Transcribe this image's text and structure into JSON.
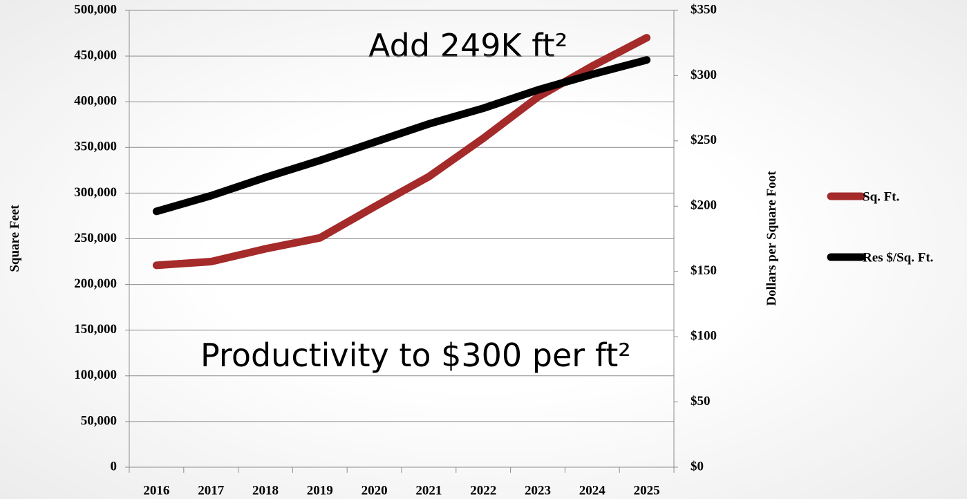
{
  "chart_data": {
    "type": "line",
    "categories": [
      "2016",
      "2017",
      "2018",
      "2019",
      "2020",
      "2021",
      "2022",
      "2023",
      "2024",
      "2025"
    ],
    "series": [
      {
        "name": "Sq. Ft.",
        "color": "#a52a2a",
        "values": [
          221000,
          225000,
          239000,
          251000,
          285000,
          318000,
          360000,
          405000,
          439000,
          470000
        ]
      },
      {
        "name": "Res $/Sq. Ft.",
        "color": "#000000",
        "axis": "y2",
        "values": [
          196,
          208,
          222,
          235,
          249,
          263,
          275,
          289,
          301,
          312
        ]
      }
    ],
    "ylabel": "Square Feet",
    "y2label": "Dollars per Square Foot",
    "ylim": [
      0,
      500000
    ],
    "yticks": [
      0,
      {
        "value": 50000,
        "label": "50,000"
      },
      {
        "value": 100000,
        "label": "100,000"
      },
      {
        "value": 150000,
        "label": "150,000"
      },
      {
        "value": 200000,
        "label": "200,000"
      },
      {
        "value": 250000,
        "label": "250,000"
      },
      {
        "value": 300000,
        "label": "300,000"
      },
      {
        "value": 350000,
        "label": "350,000"
      },
      {
        "value": 400000,
        "label": "400,000"
      },
      {
        "value": 450000,
        "label": "450,000"
      },
      {
        "value": 500000,
        "label": "500,000"
      }
    ],
    "y2lim": [
      0,
      350
    ],
    "y2ticks": [
      {
        "value": 0,
        "label": "$0"
      },
      {
        "value": 50,
        "label": "$50"
      },
      {
        "value": 100,
        "label": "$100"
      },
      {
        "value": 150,
        "label": "$150"
      },
      {
        "value": 200,
        "label": "$200"
      },
      {
        "value": 250,
        "label": "$250"
      },
      {
        "value": 300,
        "label": "$300"
      },
      {
        "value": 350,
        "label": "$350"
      }
    ],
    "annotations": [
      "Add 249K ft²",
      "Productivity to $300 per ft²"
    ],
    "grid": true,
    "legend": "right"
  }
}
